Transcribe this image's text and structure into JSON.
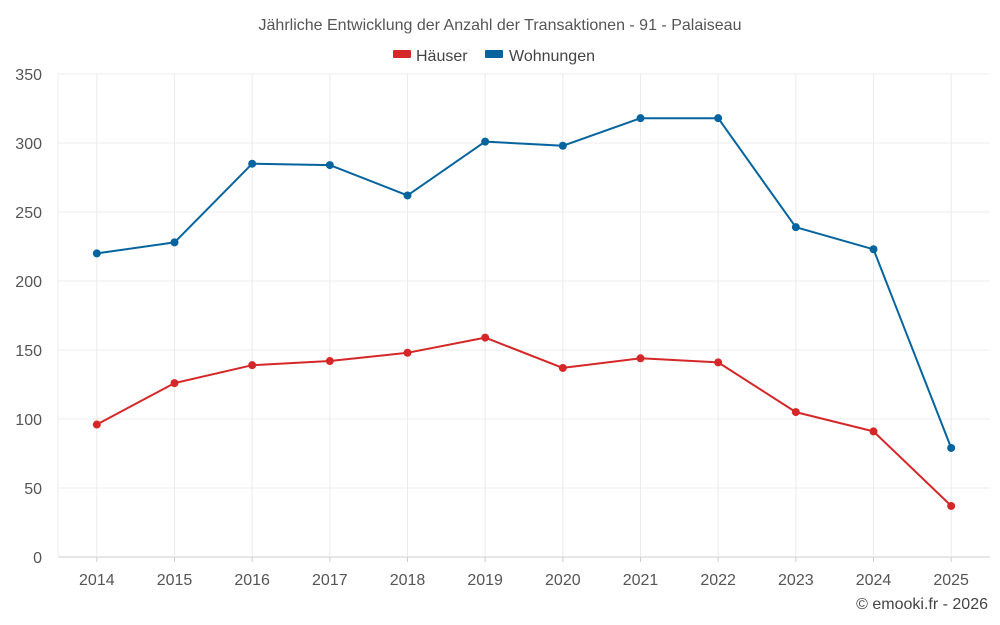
{
  "chart_data": {
    "type": "line",
    "title": "Jährliche Entwicklung der Anzahl der Transaktionen - 91 - Palaiseau",
    "categories": [
      "2014",
      "2015",
      "2016",
      "2017",
      "2018",
      "2019",
      "2020",
      "2021",
      "2022",
      "2023",
      "2024",
      "2025"
    ],
    "y_ticks": [
      "0",
      "50",
      "100",
      "150",
      "200",
      "250",
      "300",
      "350"
    ],
    "ylim": [
      0,
      350
    ],
    "grid": true,
    "legend_position": "top-center",
    "series": [
      {
        "name": "Häuser",
        "color": "#d62728",
        "values": [
          96,
          126,
          139,
          142,
          148,
          159,
          137,
          144,
          141,
          105,
          91,
          37
        ]
      },
      {
        "name": "Wohnungen",
        "color": "#05649e",
        "values": [
          220,
          228,
          285,
          284,
          262,
          301,
          298,
          318,
          318,
          239,
          223,
          79
        ]
      }
    ],
    "credit": "© emooki.fr - 2026"
  }
}
